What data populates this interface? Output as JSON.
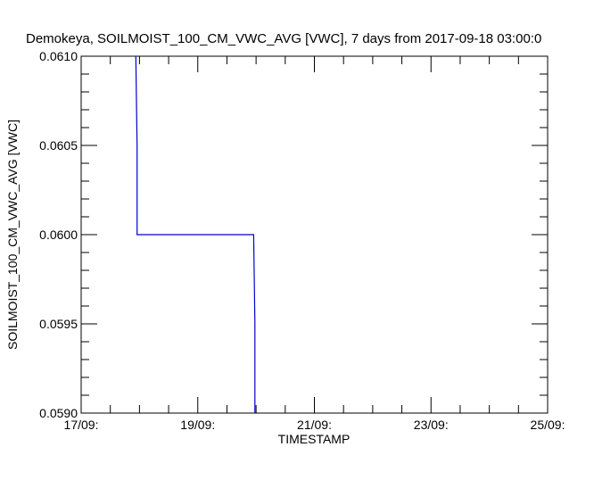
{
  "chart_data": {
    "type": "line",
    "title": "Demokeya, SOILMOIST_100_CM_VWC_AVG [VWC], 7 days from  2017-09-18 03:00:0",
    "xlabel": "TIMESTAMP",
    "ylabel": "SOILMOIST_100_CM_VWC_AVG [VWC]",
    "xlim": [
      "2017-09-17",
      "2017-09-25"
    ],
    "ylim": [
      0.059,
      0.061
    ],
    "x_ticks": [
      {
        "value": "2017-09-17",
        "label": "17/09:"
      },
      {
        "value": "2017-09-19",
        "label": "19/09:"
      },
      {
        "value": "2017-09-21",
        "label": "21/09:"
      },
      {
        "value": "2017-09-23",
        "label": "23/09:"
      },
      {
        "value": "2017-09-25",
        "label": "25/09:"
      }
    ],
    "y_ticks": [
      {
        "value": 0.059,
        "label": "0.0590"
      },
      {
        "value": 0.0595,
        "label": "0.0595"
      },
      {
        "value": 0.06,
        "label": "0.0600"
      },
      {
        "value": 0.0605,
        "label": "0.0605"
      },
      {
        "value": 0.061,
        "label": "0.0610"
      }
    ],
    "x_minor_per_major": 4,
    "y_minor_per_major": 5,
    "grid": false,
    "series": [
      {
        "color": "#0000cc",
        "points": [
          {
            "x": "2017-09-17 22:30",
            "y": 0.061
          },
          {
            "x": "2017-09-17 23:00",
            "y": 0.0605
          },
          {
            "x": "2017-09-17 23:00",
            "y": 0.06
          },
          {
            "x": "2017-09-19 23:00",
            "y": 0.06
          },
          {
            "x": "2017-09-19 23:30",
            "y": 0.0595
          },
          {
            "x": "2017-09-19 23:30",
            "y": 0.059
          }
        ]
      }
    ]
  }
}
